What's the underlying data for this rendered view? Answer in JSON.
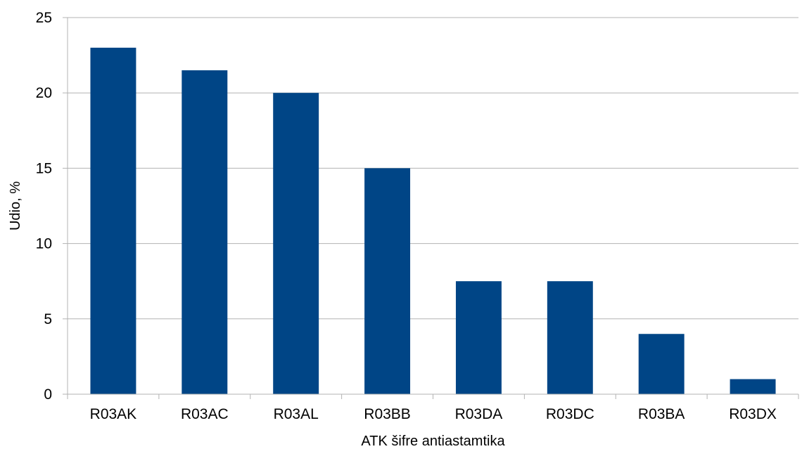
{
  "chart_data": {
    "type": "bar",
    "title": "",
    "xlabel": "ATK šifre antiastamtika",
    "ylabel": "Udio, %",
    "categories": [
      "R03AK",
      "R03AC",
      "R03AL",
      "R03BB",
      "R03DA",
      "R03DC",
      "R03BA",
      "R03DX"
    ],
    "values": [
      23,
      21.5,
      20,
      15,
      7.5,
      7.5,
      4,
      1
    ],
    "ylim": [
      0,
      25
    ],
    "yticks": [
      "0",
      "5",
      "10",
      "15",
      "20",
      "25"
    ],
    "grid": true,
    "legend": "none",
    "bar_color": "#004586"
  }
}
